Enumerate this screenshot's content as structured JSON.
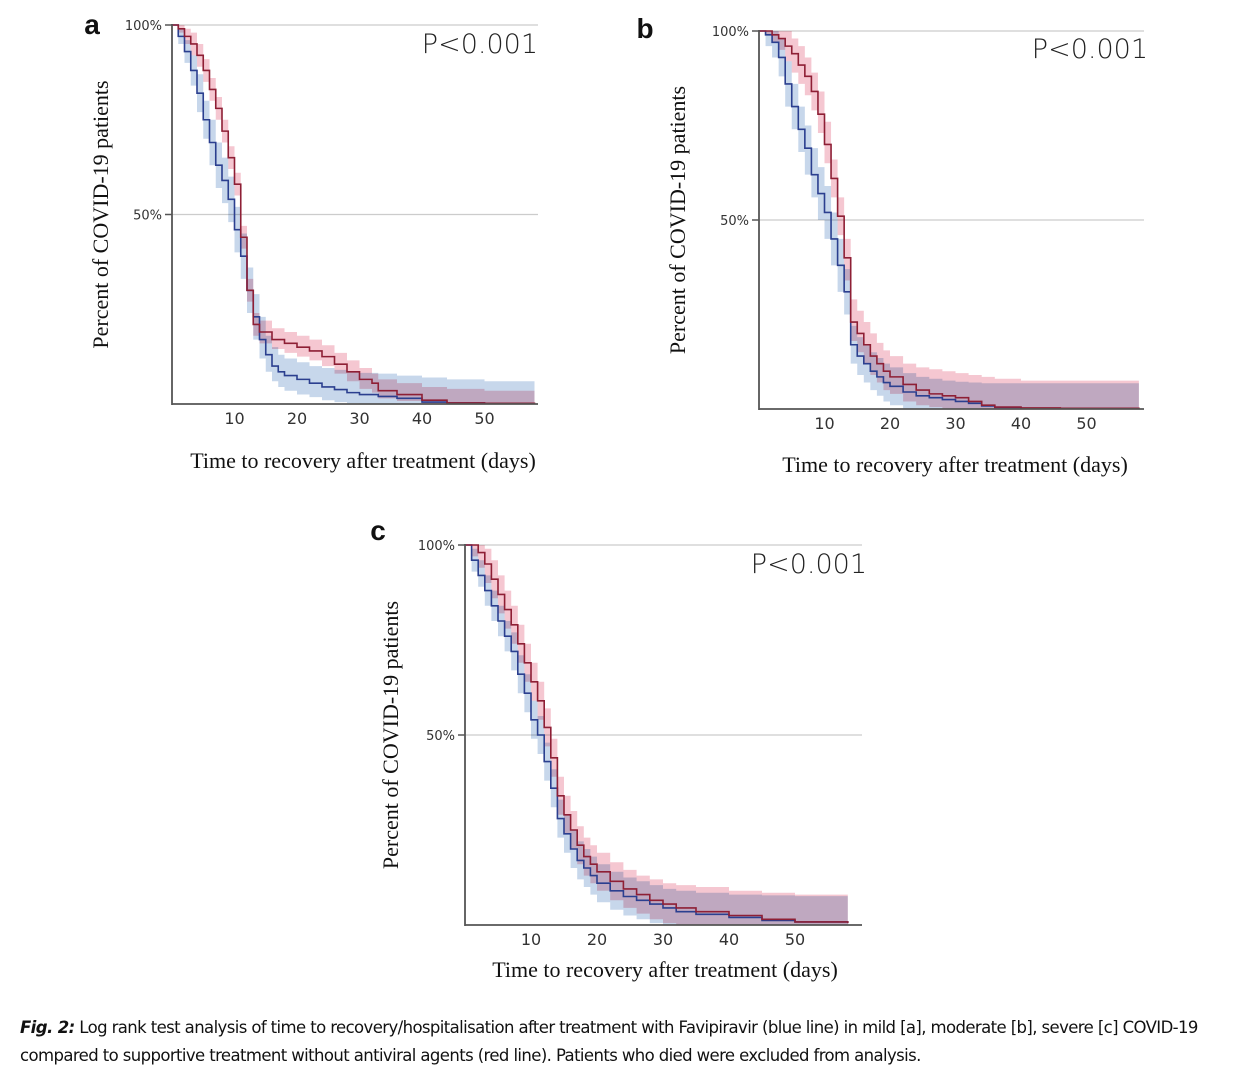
{
  "caption": {
    "label": "Fig. 2:",
    "text": " Log rank test analysis of time to recovery/hospitalisation after treatment with Favipiravir (blue line) in mild [a], moderate [b], severe [c] COVID-19 compared to supportive treatment without antiviral agents (red line). Patients who died were excluded from analysis."
  },
  "colors": {
    "favipiravir_line": "#2b3f8f",
    "favipiravir_band": "#a9c1e0",
    "supportive_line": "#8e1f35",
    "supportive_band": "#f0a9b8",
    "gridline": "#cccccc",
    "axis": "#555555"
  },
  "chart_data": [
    {
      "panel": "a",
      "type": "line",
      "subtype": "kaplan-meier-step",
      "title": "",
      "annotation": "P<0.001",
      "xlabel": "Time to recovery after treatment (days)",
      "ylabel": "Percent of COVID-19 patients",
      "xlim": [
        0,
        58
      ],
      "ylim": [
        0,
        100
      ],
      "xticks": [
        10,
        20,
        30,
        40,
        50
      ],
      "yticks": [
        {
          "value": 50,
          "label": "50%"
        },
        {
          "value": 100,
          "label": "100%"
        }
      ],
      "grid": "horizontal",
      "series": [
        {
          "name": "Favipiravir (blue line)",
          "color_key": "favipiravir",
          "x": [
            0,
            1,
            2,
            3,
            4,
            5,
            6,
            7,
            8,
            9,
            10,
            11,
            12,
            13,
            14,
            15,
            16,
            17,
            18,
            20,
            22,
            24,
            26,
            28,
            30,
            33,
            36,
            40,
            44,
            50,
            58
          ],
          "y": [
            100,
            97,
            93,
            88,
            82,
            75,
            69,
            63,
            59,
            54,
            46,
            39,
            30,
            23,
            17,
            13,
            10,
            8.5,
            7.5,
            6.5,
            5.5,
            4.5,
            3.8,
            3.0,
            2.5,
            2.0,
            1.5,
            0.5,
            0.3,
            0.2,
            0.2
          ],
          "ci_lower": [
            100,
            95,
            90,
            84,
            77,
            70,
            63,
            57,
            53,
            48,
            40,
            33,
            24,
            17,
            12,
            8.5,
            6,
            4.5,
            3.5,
            2.5,
            1.8,
            1.0,
            0.5,
            0.2,
            0,
            0,
            0,
            0,
            0,
            0,
            0
          ],
          "ci_upper": [
            100,
            99,
            96,
            92,
            87,
            80,
            75,
            69,
            65,
            60,
            52,
            45,
            36,
            29,
            23,
            18,
            15,
            13,
            12,
            11,
            10,
            9.5,
            9,
            8.5,
            8.2,
            8,
            7.5,
            7,
            6.5,
            6,
            6
          ]
        },
        {
          "name": "Supportive treatment (red line)",
          "color_key": "supportive",
          "x": [
            0,
            1,
            2,
            3,
            4,
            5,
            6,
            7,
            8,
            9,
            10,
            11,
            12,
            13,
            14,
            16,
            18,
            20,
            22,
            24,
            26,
            28,
            30,
            32,
            33,
            36,
            40,
            44,
            50,
            58
          ],
          "y": [
            100,
            99,
            97,
            95,
            92,
            88,
            83,
            78,
            72,
            65,
            58,
            44,
            30,
            21,
            19,
            17,
            16,
            15,
            14,
            12.5,
            10.5,
            8.5,
            6.5,
            5.5,
            3.5,
            2.5,
            1.0,
            0.3,
            0.2,
            0.1
          ],
          "ci_lower": [
            100,
            98,
            95,
            92,
            89,
            85,
            80,
            75,
            69,
            62,
            55,
            41,
            27,
            18,
            16,
            14.5,
            13.5,
            12.5,
            11.5,
            10,
            8,
            6,
            4,
            3,
            1.5,
            0.8,
            0,
            0,
            0,
            0
          ],
          "ci_upper": [
            100,
            100,
            99,
            98,
            95,
            91,
            86,
            81,
            75,
            68,
            61,
            47,
            33,
            24,
            22,
            20,
            19,
            18,
            17,
            15.5,
            13.5,
            11.5,
            9.5,
            8,
            6.5,
            5.5,
            4.5,
            4,
            3.5,
            3.5
          ]
        }
      ]
    },
    {
      "panel": "b",
      "type": "line",
      "subtype": "kaplan-meier-step",
      "title": "",
      "annotation": "P<0.001",
      "xlabel": "Time to recovery after treatment (days)",
      "ylabel": "Percent of COVID-19 patients",
      "xlim": [
        0,
        58
      ],
      "ylim": [
        0,
        100
      ],
      "xticks": [
        10,
        20,
        30,
        40,
        50
      ],
      "yticks": [
        {
          "value": 50,
          "label": "50%"
        },
        {
          "value": 100,
          "label": "100%"
        }
      ],
      "grid": "horizontal",
      "series": [
        {
          "name": "Favipiravir (blue line)",
          "color_key": "favipiravir",
          "x": [
            0,
            1,
            2,
            3,
            4,
            5,
            6,
            7,
            8,
            9,
            10,
            11,
            12,
            13,
            14,
            15,
            16,
            17,
            18,
            19,
            20,
            22,
            24,
            26,
            28,
            30,
            32,
            34,
            36,
            40,
            46
          ],
          "y": [
            100,
            99,
            97,
            93,
            86,
            80,
            74,
            69,
            62,
            57,
            52,
            45,
            38,
            31,
            17,
            14,
            12,
            10,
            8.5,
            7,
            6,
            4.5,
            3.5,
            3.0,
            2.5,
            2.0,
            1.5,
            0.8,
            0.4,
            0.2,
            0.2
          ],
          "ci_lower": [
            100,
            96,
            93,
            88,
            80,
            74,
            68,
            62,
            56,
            50,
            45,
            38,
            31,
            25,
            12,
            9,
            7,
            5,
            3.5,
            2,
            1,
            0,
            0,
            0,
            0,
            0,
            0,
            0,
            0,
            0,
            0
          ],
          "ci_upper": [
            100,
            100,
            100,
            98,
            92,
            86,
            80,
            75,
            69,
            64,
            59,
            52,
            45,
            37,
            22,
            19,
            17,
            15,
            13.5,
            12,
            11,
            9.5,
            8.5,
            8,
            7.5,
            7.2,
            7,
            6.8,
            6.8,
            6.8,
            6.8
          ]
        },
        {
          "name": "Supportive treatment (red line)",
          "color_key": "supportive",
          "x": [
            0,
            1,
            2,
            3,
            4,
            5,
            6,
            7,
            8,
            9,
            10,
            11,
            12,
            13,
            14,
            15,
            16,
            17,
            18,
            19,
            20,
            22,
            24,
            26,
            28,
            30,
            32,
            34,
            36,
            40,
            46,
            58
          ],
          "y": [
            100,
            100,
            99,
            98,
            96,
            94,
            91,
            88,
            84,
            78,
            70,
            61,
            51,
            40,
            23,
            20,
            17,
            14,
            12,
            10,
            8.5,
            6.5,
            5,
            4,
            3.5,
            3.0,
            2.0,
            1.0,
            0.5,
            0.3,
            0.2,
            0.1
          ],
          "ci_lower": [
            100,
            99,
            97,
            95,
            92,
            89,
            86,
            83,
            79,
            73,
            65,
            56,
            46,
            34,
            18,
            15,
            12,
            9,
            7,
            5,
            4,
            2,
            1,
            0.5,
            0,
            0,
            0,
            0,
            0,
            0,
            0,
            0
          ],
          "ci_upper": [
            100,
            100,
            100,
            100,
            100,
            98,
            96,
            93,
            89,
            84,
            76,
            66,
            56,
            45,
            29,
            26,
            23,
            20,
            17.5,
            15.5,
            14,
            12,
            11,
            10.5,
            10,
            9.5,
            9,
            8.5,
            8,
            7.5,
            7.5,
            7.5
          ]
        }
      ]
    },
    {
      "panel": "c",
      "type": "line",
      "subtype": "kaplan-meier-step",
      "title": "",
      "annotation": "P<0.001",
      "xlabel": "Time to recovery after treatment (days)",
      "ylabel": "Percent of COVID-19 patients",
      "xlim": [
        0,
        58
      ],
      "ylim": [
        0,
        100
      ],
      "xticks": [
        10,
        20,
        30,
        40,
        50
      ],
      "yticks": [
        {
          "value": 50,
          "label": "50%"
        },
        {
          "value": 100,
          "label": "100%"
        }
      ],
      "grid": "horizontal",
      "series": [
        {
          "name": "Favipiravir (blue line)",
          "color_key": "favipiravir",
          "x": [
            0,
            1,
            2,
            3,
            4,
            5,
            6,
            7,
            8,
            9,
            10,
            11,
            12,
            13,
            14,
            15,
            16,
            17,
            18,
            19,
            20,
            22,
            24,
            26,
            28,
            30,
            32,
            35,
            40,
            45,
            50,
            58
          ],
          "y": [
            100,
            96,
            92,
            88,
            84,
            80,
            76,
            72,
            66,
            61,
            54,
            50,
            43,
            36,
            28,
            24,
            20,
            17,
            15,
            13,
            11,
            9,
            7.5,
            6.5,
            5.5,
            4.5,
            3.5,
            2.8,
            2.0,
            1.2,
            0.8,
            0.5
          ],
          "ci_lower": [
            100,
            93,
            89,
            84,
            80,
            76,
            72,
            67,
            61,
            56,
            49,
            45,
            38,
            31,
            23,
            19,
            15,
            12,
            10,
            8,
            6,
            4,
            2.5,
            1.5,
            0.5,
            0,
            0,
            0,
            0,
            0,
            0,
            0
          ],
          "ci_upper": [
            100,
            99,
            96,
            92,
            88,
            84,
            80,
            77,
            71,
            66,
            59,
            55,
            48,
            41,
            33,
            29,
            25,
            22,
            20,
            18,
            16,
            14,
            12.5,
            11.5,
            10.5,
            9.5,
            9,
            8.5,
            8,
            7.8,
            7.6,
            7.5
          ]
        },
        {
          "name": "Supportive treatment (red line)",
          "color_key": "supportive",
          "x": [
            0,
            1,
            2,
            3,
            4,
            5,
            6,
            7,
            8,
            9,
            10,
            11,
            12,
            13,
            14,
            15,
            16,
            17,
            18,
            19,
            20,
            22,
            24,
            26,
            28,
            30,
            32,
            35,
            40,
            45,
            50,
            58
          ],
          "y": [
            100,
            100,
            98,
            95,
            91,
            87,
            83,
            79,
            74,
            69,
            64,
            59,
            52,
            44,
            34,
            29,
            25,
            21,
            18,
            16,
            14,
            11.5,
            9.5,
            8,
            6.5,
            5.5,
            4.5,
            3.5,
            2.5,
            1.5,
            0.8,
            0.5
          ],
          "ci_lower": [
            100,
            97,
            94,
            90,
            86,
            82,
            78,
            74,
            69,
            64,
            59,
            54,
            47,
            39,
            29,
            24,
            20,
            16,
            13,
            11,
            9,
            6.5,
            4.5,
            3,
            1.5,
            0.5,
            0,
            0,
            0,
            0,
            0,
            0
          ],
          "ci_upper": [
            100,
            100,
            100,
            99,
            96,
            92,
            88,
            84,
            79,
            74,
            69,
            64,
            57,
            49,
            39,
            34,
            30,
            26,
            23,
            21,
            19,
            16.5,
            14.5,
            13,
            12,
            11,
            10.5,
            10,
            9,
            8.5,
            8,
            8
          ]
        }
      ]
    }
  ]
}
